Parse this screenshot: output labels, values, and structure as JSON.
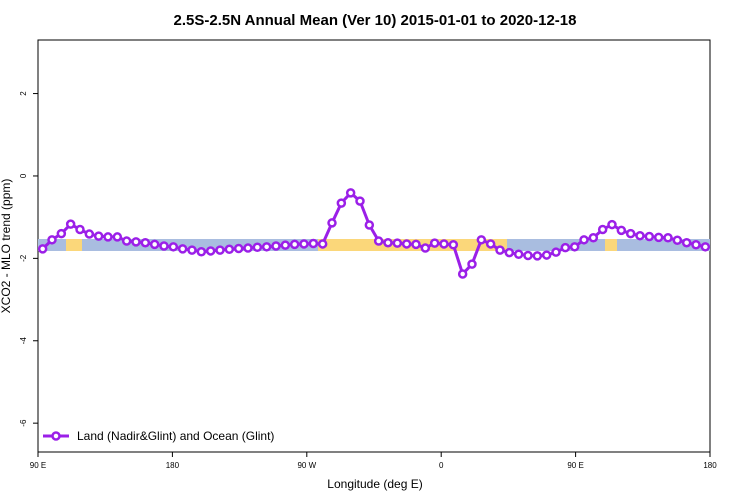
{
  "chart_data": {
    "type": "line",
    "title": "2.5S-2.5N Annual Mean (Ver 10)   2015-01-01 to 2020-12-18",
    "x_label": "Longitude (deg E)",
    "y_label": "XCO2 - MLO trend (ppm)",
    "xlim": [
      90,
      540
    ],
    "ylim": [
      -6.7,
      3.3
    ],
    "xticks": [
      {
        "value": 90,
        "label": "90 E"
      },
      180,
      {
        "value": 270,
        "label": "90 W"
      },
      {
        "value": 360,
        "label": "0"
      },
      {
        "value": 450,
        "label": "90 E"
      },
      {
        "value": 540,
        "label": "180"
      }
    ],
    "yticks": [
      -6,
      -4,
      -2,
      0,
      2
    ],
    "legend": "bottom-left",
    "x": [
      93.125,
      99.375,
      105.625,
      111.875,
      118.125,
      124.375,
      130.625,
      136.875,
      143.125,
      149.375,
      155.625,
      161.875,
      168.125,
      174.375,
      180.625,
      186.875,
      193.125,
      199.375,
      205.625,
      211.875,
      218.125,
      224.375,
      230.625,
      236.875,
      243.125,
      249.375,
      255.625,
      261.875,
      268.125,
      274.375,
      280.625,
      286.875,
      293.125,
      299.375,
      305.625,
      311.875,
      318.125,
      324.375,
      330.625,
      336.875,
      343.125,
      349.375,
      355.625,
      361.875,
      368.125,
      374.375,
      380.625,
      386.875,
      393.125,
      399.375,
      405.625,
      411.875,
      418.125,
      424.375,
      430.625,
      436.875,
      443.125,
      449.375,
      455.625,
      461.875,
      468.125,
      474.375,
      480.625,
      486.875,
      493.125,
      499.375,
      505.625,
      511.875,
      518.125,
      524.375,
      530.625,
      536.875
    ],
    "series": [
      {
        "name": "Land (Nadir&Glint) and Ocean (Glint)",
        "color": "#9b1fe8",
        "values": [
          -1.77,
          -1.55,
          -1.4,
          -1.17,
          -1.3,
          -1.41,
          -1.46,
          -1.48,
          -1.48,
          -1.58,
          -1.6,
          -1.62,
          -1.66,
          -1.7,
          -1.72,
          -1.77,
          -1.8,
          -1.84,
          -1.82,
          -1.8,
          -1.78,
          -1.76,
          -1.75,
          -1.73,
          -1.72,
          -1.7,
          -1.68,
          -1.66,
          -1.65,
          -1.64,
          -1.65,
          -1.14,
          -0.66,
          -0.41,
          -0.61,
          -1.19,
          -1.58,
          -1.62,
          -1.63,
          -1.65,
          -1.66,
          -1.75,
          -1.63,
          -1.65,
          -1.67,
          -2.38,
          -2.14,
          -1.55,
          -1.65,
          -1.8,
          -1.86,
          -1.9,
          -1.93,
          -1.94,
          -1.92,
          -1.85,
          -1.74,
          -1.72,
          -1.55,
          -1.5,
          -1.3,
          -1.18,
          -1.32,
          -1.4,
          -1.45,
          -1.47,
          -1.49,
          -1.5,
          -1.56,
          -1.62,
          -1.67,
          -1.72
        ]
      }
    ]
  }
}
